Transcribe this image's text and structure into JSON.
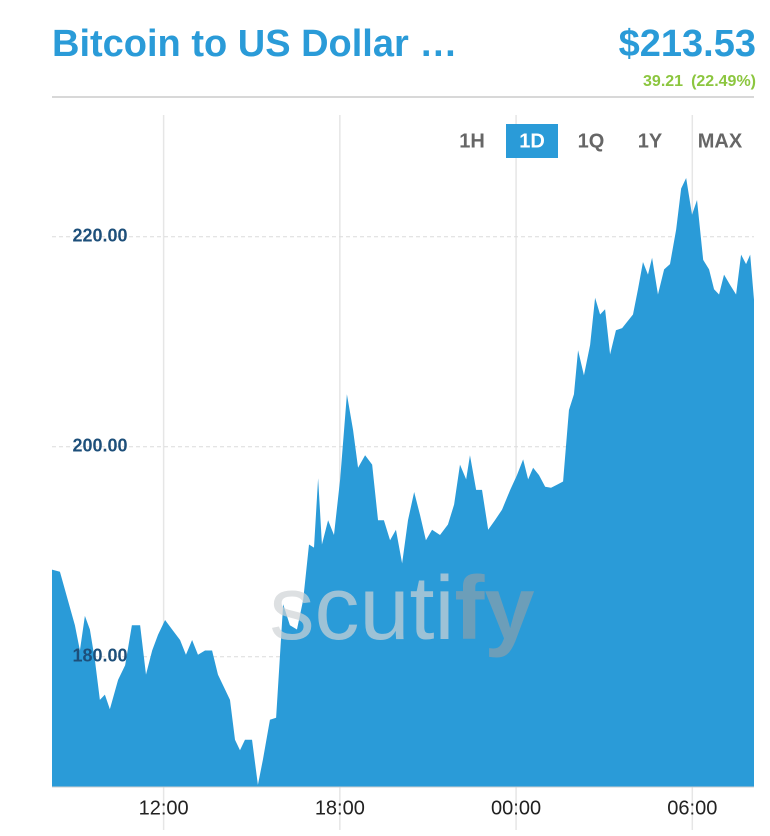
{
  "header": {
    "title": "Bitcoin to US Dollar …",
    "price": "$213.53",
    "change": "39.21",
    "change_pct": "(22.49%)"
  },
  "ranges": {
    "options": [
      "1H",
      "1D",
      "1Q",
      "1Y",
      "MAX"
    ],
    "active": "1D"
  },
  "watermark": {
    "parts": [
      "scuti",
      "fy"
    ]
  },
  "chart_data": {
    "type": "area",
    "color": "#2a9bd8",
    "grid": true,
    "x": [
      8.2,
      8.47,
      8.74,
      8.98,
      9.15,
      9.32,
      9.49,
      9.66,
      9.83,
      10.0,
      10.17,
      10.45,
      10.69,
      10.92,
      11.2,
      11.4,
      11.61,
      11.81,
      12.05,
      12.29,
      12.56,
      12.76,
      12.97,
      13.17,
      13.41,
      13.65,
      13.85,
      14.09,
      14.26,
      14.43,
      14.6,
      14.77,
      15.01,
      15.21,
      15.38,
      15.62,
      15.83,
      16.07,
      16.3,
      16.54,
      16.75,
      16.95,
      17.12,
      17.26,
      17.39,
      17.6,
      17.8,
      18.01,
      18.24,
      18.45,
      18.62,
      18.86,
      19.1,
      19.3,
      19.5,
      19.71,
      19.91,
      20.12,
      20.32,
      20.53,
      20.73,
      20.93,
      21.14,
      21.41,
      21.68,
      21.89,
      22.09,
      22.3,
      22.43,
      22.64,
      22.84,
      23.05,
      23.28,
      23.52,
      23.8,
      24.03,
      24.24,
      24.41,
      24.58,
      24.78,
      24.99,
      25.19,
      25.4,
      25.6,
      25.8,
      25.97,
      26.11,
      26.31,
      26.52,
      26.69,
      26.86,
      27.03,
      27.2,
      27.4,
      27.61,
      27.81,
      27.98,
      28.15,
      28.32,
      28.49,
      28.63,
      28.83,
      29.04,
      29.24,
      29.45,
      29.62,
      29.79,
      29.99,
      30.16,
      30.37,
      30.57,
      30.74,
      30.91,
      31.08,
      31.29,
      31.49,
      31.66,
      31.83,
      31.97,
      32.1
    ],
    "values": [
      188.3,
      188.1,
      185.4,
      183.0,
      180.6,
      183.9,
      182.6,
      179.7,
      175.9,
      176.4,
      175.0,
      177.8,
      179.2,
      183.0,
      183.0,
      178.3,
      180.6,
      182.1,
      183.5,
      182.6,
      181.6,
      180.2,
      181.6,
      180.2,
      180.6,
      180.6,
      178.3,
      176.9,
      175.9,
      172.1,
      171.1,
      172.1,
      172.1,
      167.8,
      170.2,
      174.0,
      174.2,
      185.0,
      183.0,
      182.6,
      185.4,
      190.7,
      190.4,
      197.0,
      190.7,
      193.0,
      191.6,
      196.9,
      205.0,
      201.6,
      198.0,
      199.2,
      198.3,
      193.0,
      193.0,
      191.1,
      192.1,
      188.9,
      193.0,
      195.7,
      193.5,
      191.1,
      192.1,
      191.6,
      192.6,
      194.5,
      198.3,
      196.9,
      199.2,
      195.9,
      195.9,
      192.1,
      193.0,
      194.0,
      195.9,
      197.3,
      198.8,
      196.9,
      198.0,
      197.3,
      196.2,
      196.1,
      196.4,
      196.7,
      203.5,
      205.0,
      209.2,
      206.8,
      209.7,
      214.2,
      212.6,
      213.1,
      208.8,
      211.1,
      211.3,
      212.0,
      212.6,
      215.0,
      217.6,
      216.4,
      218.0,
      214.5,
      216.9,
      217.4,
      220.7,
      224.6,
      225.6,
      222.1,
      223.5,
      217.8,
      216.9,
      215.0,
      214.5,
      216.4,
      215.4,
      214.5,
      218.3,
      217.4,
      218.3,
      214.0
    ],
    "xlim": [
      8.2,
      32.1
    ],
    "xticks": [
      {
        "value": 12,
        "label": "12:00"
      },
      {
        "value": 18,
        "label": "18:00"
      },
      {
        "value": 24,
        "label": "00:00"
      },
      {
        "value": 30,
        "label": "06:00"
      }
    ],
    "ylim": [
      167.6,
      231.6
    ],
    "yticks": [
      {
        "value": 180,
        "label": "180.00"
      },
      {
        "value": 200,
        "label": "200.00"
      },
      {
        "value": 220,
        "label": "220.00"
      }
    ]
  }
}
